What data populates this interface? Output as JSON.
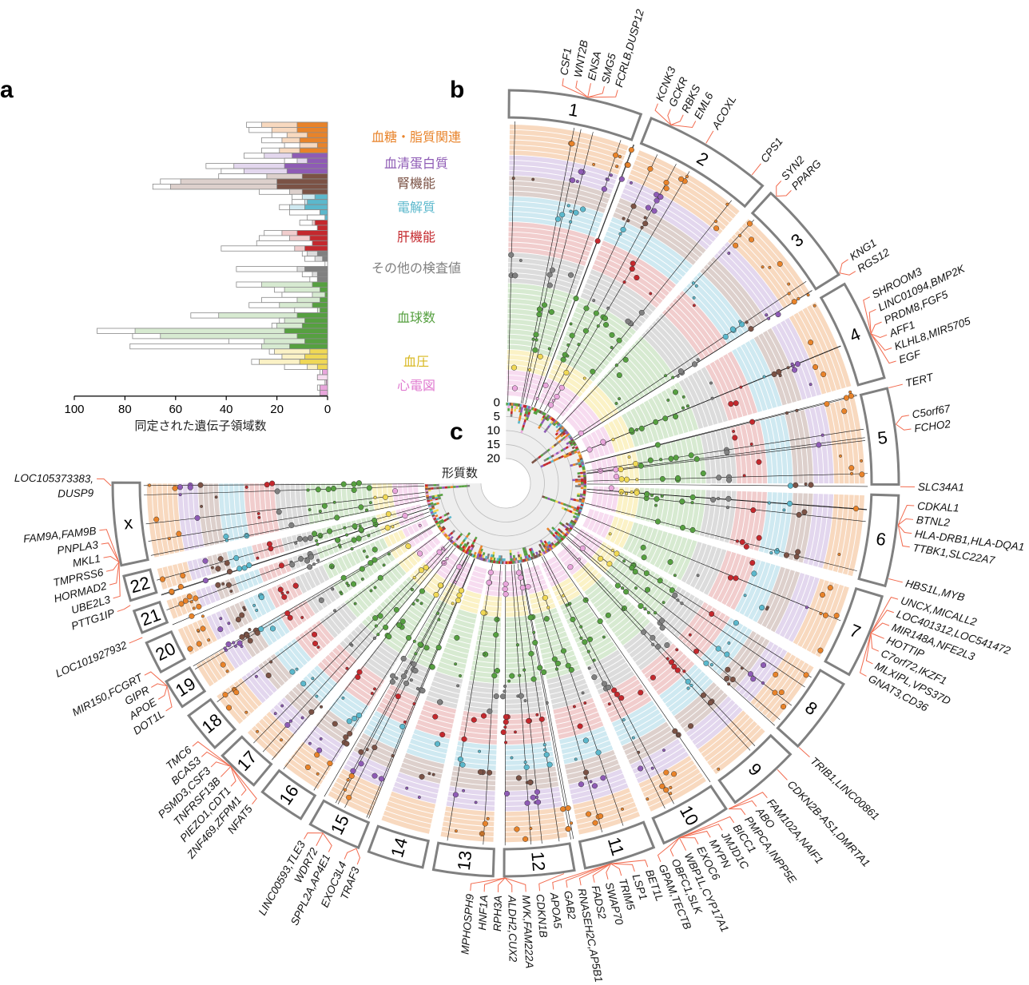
{
  "panels": {
    "a": "a",
    "b": "b",
    "c": "c"
  },
  "colors": {
    "categories_dark": [
      "#e8832a",
      "#8e5bb5",
      "#7b5245",
      "#5bb8cc",
      "#c4282d",
      "#808080",
      "#56a040",
      "#f0d855",
      "#e9a6dc"
    ],
    "categories_light": [
      "#f8d9bf",
      "#e3d7ee",
      "#ddd0cc",
      "#cfe9f1",
      "#f1cdcd",
      "#dcdcdc",
      "#d7ead1",
      "#fbf2c6",
      "#f7dcf0"
    ],
    "legend_text": [
      "#e8832a",
      "#8e5bb5",
      "#7b5245",
      "#5bb8cc",
      "#c4282d",
      "#808080",
      "#56a040",
      "#d8b820",
      "#e07ad0"
    ],
    "chromosome_stroke": "#808080",
    "label_line": "#f26b4f"
  },
  "chart_data": [
    {
      "panel": "a",
      "type": "bar",
      "orientation": "horizontal",
      "xlabel": "同定された遺伝子領域数",
      "xlim": [
        100,
        0
      ],
      "xticks": [
        "100",
        "80",
        "60",
        "40",
        "20",
        "0"
      ],
      "legend": [
        "血糖・脂質関連",
        "血清蛋白質",
        "腎機能",
        "電解質",
        "肝機能",
        "その他の検査値",
        "血球数",
        "血圧",
        "心電図"
      ],
      "category_trait_counts": [
        6,
        4,
        4,
        5,
        6,
        6,
        13,
        4,
        5
      ],
      "series_names": [
        "dark",
        "light",
        "total"
      ],
      "rows": [
        [
          12,
          26,
          32
        ],
        [
          12,
          22,
          31
        ],
        [
          8,
          16,
          22
        ],
        [
          11,
          18,
          26
        ],
        [
          4,
          11,
          17
        ],
        [
          11,
          19,
          26
        ],
        [
          14,
          25,
          33
        ],
        [
          8,
          12,
          17
        ],
        [
          17,
          37,
          48
        ],
        [
          16,
          33,
          42
        ],
        [
          10,
          24,
          43
        ],
        [
          20,
          58,
          66
        ],
        [
          20,
          62,
          69
        ],
        [
          10,
          15,
          27
        ],
        [
          5,
          10,
          14
        ],
        [
          8,
          9,
          14
        ],
        [
          9,
          15,
          19
        ],
        [
          3,
          3,
          15
        ],
        [
          1,
          1,
          8
        ],
        [
          5,
          6,
          11
        ],
        [
          4,
          4,
          4
        ],
        [
          12,
          18,
          25
        ],
        [
          7,
          15,
          27
        ],
        [
          6,
          6,
          28
        ],
        [
          9,
          13,
          42
        ],
        [
          4,
          8,
          10
        ],
        [
          2,
          5,
          9
        ],
        [
          0,
          0,
          1
        ],
        [
          9,
          12,
          36
        ],
        [
          4,
          6,
          10
        ],
        [
          4,
          4,
          7
        ],
        [
          6,
          26,
          36
        ],
        [
          3,
          17,
          21
        ],
        [
          1,
          6,
          18
        ],
        [
          3,
          12,
          26
        ],
        [
          6,
          19,
          31
        ],
        [
          3,
          4,
          13
        ],
        [
          12,
          43,
          54
        ],
        [
          9,
          17,
          19
        ],
        [
          10,
          20,
          22
        ],
        [
          17,
          76,
          91
        ],
        [
          12,
          66,
          77
        ],
        [
          9,
          25,
          39
        ],
        [
          15,
          26,
          78
        ],
        [
          7,
          21,
          23
        ],
        [
          9,
          18,
          18
        ],
        [
          11,
          27,
          30
        ],
        [
          4,
          8,
          17
        ],
        [
          2,
          2,
          3
        ],
        [
          0,
          4,
          4
        ],
        [
          0.5,
          1,
          1
        ],
        [
          3,
          3,
          4
        ],
        [
          3,
          3,
          3
        ]
      ]
    },
    {
      "panel": "b",
      "type": "scatter",
      "subtype": "circos",
      "chromosomes": [
        "1",
        "2",
        "3",
        "4",
        "5",
        "6",
        "7",
        "8",
        "9",
        "10",
        "11",
        "12",
        "13",
        "14",
        "15",
        "16",
        "17",
        "18",
        "19",
        "20",
        "21",
        "22",
        "X"
      ],
      "chromosome_sizes_mb": [
        249,
        242,
        198,
        190,
        181,
        171,
        159,
        145,
        138,
        134,
        135,
        133,
        114,
        107,
        102,
        90,
        83,
        80,
        59,
        64,
        47,
        51,
        156
      ],
      "loci_label_groups": [
        [
          "CSF1",
          "WNT2B",
          "ENSA",
          "SMG5",
          "FCRLB,DUSP12"
        ],
        [
          "KCNK3",
          "GCKR",
          "RBKS",
          "EML6"
        ],
        [
          "ACOXL"
        ],
        [
          "CPS1"
        ],
        [
          "SYN2",
          "PPARG"
        ],
        [
          "KNG1",
          "RGS12"
        ],
        [
          "SHROOM3",
          "LINC01094,BMP2K",
          "PRDM8,FGF5",
          "AFF1",
          "KLHL8,MIR5705",
          "EGF"
        ],
        [
          "TERT"
        ],
        [
          "C5orf67",
          "FCHO2"
        ],
        [
          "SLC34A1"
        ],
        [
          "CDKAL1",
          "BTNL2",
          "HLA-DRB1,HLA-DQA1",
          "TTBK1,SLC22A7"
        ],
        [
          "HBS1L,MYB"
        ],
        [
          "UNCX,MICALL2",
          "LOC401312,LOC541472",
          "MIR148A,NFE2L3",
          "HOTTIP",
          "C7orf72,IKZF1",
          "MLXIPL,VPS37D",
          "GNAT3,CD36"
        ],
        [
          "TRIB1,LINC00861"
        ],
        [
          "CDKN2B-AS1,DMRTA1"
        ],
        [
          "FAM102A,NAIF1",
          "ABO",
          "PMPCA,INPP5E"
        ],
        [
          "BICC1",
          "JMJD1C",
          "MYPN",
          "EXOC6",
          "WBP1L,CYP17A1",
          "OBFC1,SLK",
          "GPAM,TECTB"
        ],
        [
          "BET1L",
          "LSP1",
          "TRIM5",
          "SWAP70",
          "FADS2",
          "RNASEH2C,AP5B1",
          "GAB2",
          "APOA5"
        ],
        [
          "CDKN1B"
        ],
        [
          "MVK,FAM222A",
          "ALDH2,CUX2",
          "RPH3A",
          "HNF1A",
          "MPHOSPH9"
        ],
        [
          "EXOC3L4",
          "TRAF3"
        ],
        [
          "LINC00593,TLE3",
          "WDR72",
          "SPPL2A,AP4E1"
        ],
        [
          "TMC6",
          "BCAS3",
          "PSMD3,CSF3",
          "TNFRSF13B",
          "PIEZO1,CDT1",
          "ZNF469,ZFPM1",
          "NFAT5"
        ],
        [
          "MIR150,FCGRT",
          "GIPR",
          "APOE",
          "DOT1L"
        ],
        [
          "LOC101927932"
        ],
        [
          "PTTG1IP"
        ],
        [
          "FAM9A,FAM9B",
          "PNPLA3",
          "MKL1",
          "TMPRSS6",
          "HORMAD2",
          "UBE2L3"
        ],
        [
          "LOC105373383,",
          "DUSP9"
        ]
      ]
    },
    {
      "panel": "c",
      "type": "bar",
      "subtype": "radial-stacked",
      "title": "形質数",
      "rlim": [
        0,
        20
      ],
      "rticks": [
        "0",
        "5",
        "10",
        "15",
        "20"
      ]
    }
  ]
}
